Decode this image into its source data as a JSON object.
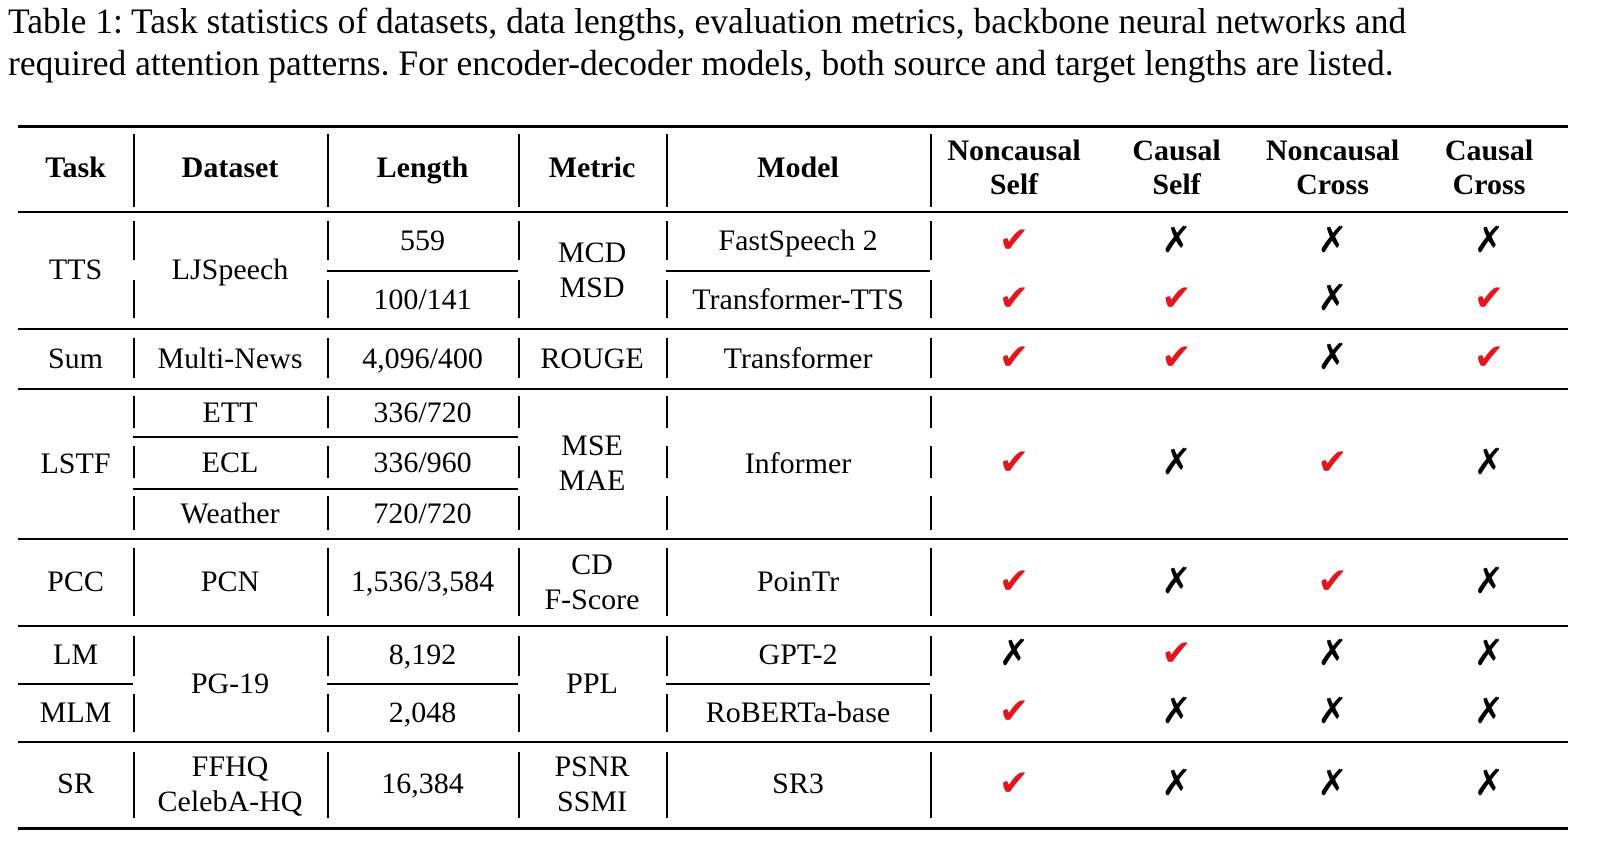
{
  "caption": {
    "line1": "Table 1: Task statistics of datasets, data lengths, evaluation metrics, backbone neural networks and",
    "line2": "required attention patterns. For encoder-decoder models, both source and target lengths are listed."
  },
  "table": {
    "headers": [
      "Task",
      "Dataset",
      "Length",
      "Metric",
      "Model",
      "Noncausal Self",
      "Causal Self",
      "Noncausal Cross",
      "Causal Cross"
    ],
    "groups": [
      {
        "task": "TTS",
        "dataset": "LJSpeech",
        "metric": "MCD MSD",
        "rows": [
          {
            "length": "559",
            "model": "FastSpeech 2",
            "marks": [
              true,
              false,
              false,
              false
            ]
          },
          {
            "length": "100/141",
            "model": "Transformer-TTS",
            "marks": [
              true,
              true,
              false,
              true
            ]
          }
        ]
      },
      {
        "task": "Sum",
        "dataset": "Multi-News",
        "metric": "ROUGE",
        "rows": [
          {
            "length": "4,096/400",
            "model": "Transformer",
            "marks": [
              true,
              true,
              false,
              true
            ]
          }
        ]
      },
      {
        "task": "LSTF",
        "metric": "MSE MAE",
        "model": "Informer",
        "marks": [
          true,
          false,
          true,
          false
        ],
        "rows": [
          {
            "dataset": "ETT",
            "length": "336/720"
          },
          {
            "dataset": "ECL",
            "length": "336/960"
          },
          {
            "dataset": "Weather",
            "length": "720/720"
          }
        ]
      },
      {
        "task": "PCC",
        "dataset": "PCN",
        "metric": "CD F-Score",
        "rows": [
          {
            "length": "1,536/3,584",
            "model": "PoinTr",
            "marks": [
              true,
              false,
              true,
              false
            ]
          }
        ]
      },
      {
        "dataset": "PG-19",
        "metric": "PPL",
        "rows": [
          {
            "task": "LM",
            "length": "8,192",
            "model": "GPT-2",
            "marks": [
              false,
              true,
              false,
              false
            ]
          },
          {
            "task": "MLM",
            "length": "2,048",
            "model": "RoBERTa-base",
            "marks": [
              true,
              false,
              false,
              false
            ]
          }
        ]
      },
      {
        "task": "SR",
        "dataset": "FFHQ CelebA-HQ",
        "metric": "PSNR SSMI",
        "rows": [
          {
            "length": "16,384",
            "model": "SR3",
            "marks": [
              true,
              false,
              false,
              false
            ]
          }
        ]
      }
    ],
    "mark_symbols": {
      "yes": "✔",
      "no": "✗"
    },
    "colors": {
      "yes": "#e8141c",
      "no": "#000000"
    }
  }
}
